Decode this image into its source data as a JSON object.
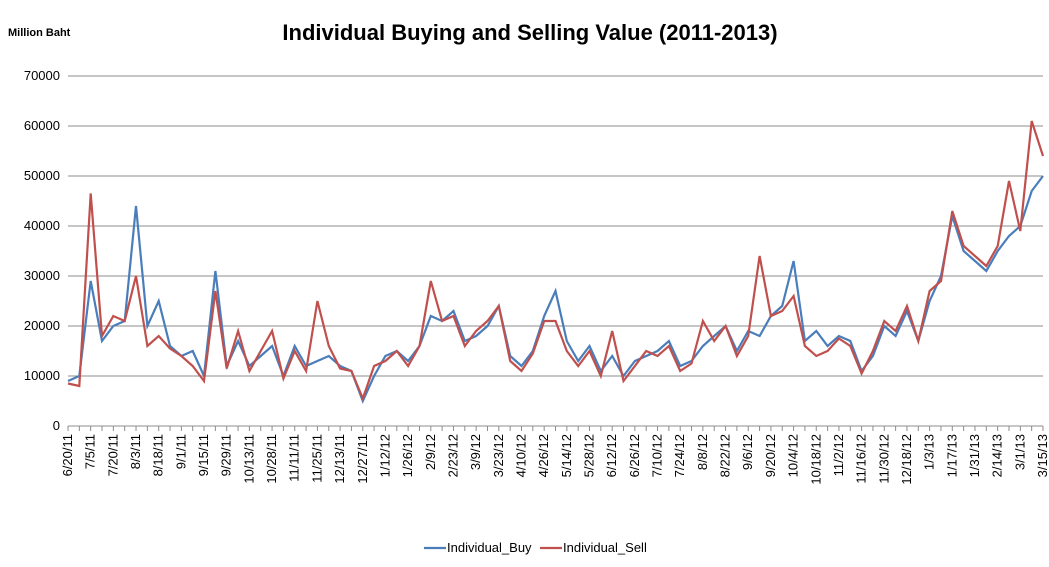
{
  "chart_data": {
    "type": "line",
    "title": "Individual Buying and Selling Value (2011-2013)",
    "y_label": "Million Baht",
    "categories": [
      "6/20/11",
      null,
      "7/5/11",
      null,
      "7/20/11",
      null,
      "8/3/11",
      null,
      "8/18/11",
      null,
      "9/1/11",
      null,
      "9/15/11",
      null,
      "9/29/11",
      null,
      "10/13/11",
      null,
      "10/28/11",
      null,
      "11/11/11",
      null,
      "11/25/11",
      null,
      "12/13/11",
      null,
      "12/27/11",
      null,
      "1/12/12",
      null,
      "1/26/12",
      null,
      "2/9/12",
      null,
      "2/23/12",
      null,
      "3/9/12",
      null,
      "3/23/12",
      null,
      "4/10/12",
      null,
      "4/26/12",
      null,
      "5/14/12",
      null,
      "5/28/12",
      null,
      "6/12/12",
      null,
      "6/26/12",
      null,
      "7/10/12",
      null,
      "7/24/12",
      null,
      "8/8/12",
      null,
      "8/22/12",
      null,
      "9/6/12",
      null,
      "9/20/12",
      null,
      "10/4/12",
      null,
      "10/18/12",
      null,
      "11/2/12",
      null,
      "11/16/12",
      null,
      "11/30/12",
      null,
      "12/18/12",
      null,
      "1/3/13",
      null,
      "1/17/13",
      null,
      "1/31/13",
      null,
      "2/14/13",
      null,
      "3/1/13",
      null,
      "3/15/13"
    ],
    "series": [
      {
        "name": "Individual_Buy",
        "color": "#4a7ebb",
        "values": [
          9000,
          10000,
          29000,
          17000,
          20000,
          21000,
          44000,
          20000,
          25000,
          16000,
          14000,
          15000,
          10000,
          31000,
          12000,
          17000,
          12000,
          14000,
          16000,
          10000,
          16000,
          12000,
          13000,
          14000,
          12000,
          11000,
          5000,
          10000,
          14000,
          15000,
          13000,
          16000,
          22000,
          21000,
          23000,
          17000,
          18000,
          20000,
          24000,
          14000,
          12000,
          15000,
          22000,
          27000,
          17000,
          13000,
          16000,
          11000,
          14000,
          10000,
          13000,
          14000,
          15000,
          17000,
          12000,
          13000,
          16000,
          18000,
          20000,
          15000,
          19000,
          18000,
          22000,
          24000,
          33000,
          17000,
          19000,
          16000,
          18000,
          17000,
          11000,
          14000,
          20000,
          18000,
          23000,
          17000,
          25000,
          30000,
          42000,
          35000,
          33000,
          31000,
          35000,
          38000,
          40000,
          47000,
          50000
        ]
      },
      {
        "name": "Individual_Sell",
        "color": "#c0504d",
        "values": [
          8500,
          8000,
          46500,
          18000,
          22000,
          21000,
          30000,
          16000,
          18000,
          15500,
          14000,
          12000,
          9000,
          27000,
          11500,
          19000,
          11000,
          15000,
          19000,
          9500,
          15000,
          11000,
          25000,
          16000,
          11500,
          11000,
          5500,
          12000,
          13000,
          15000,
          12000,
          16000,
          29000,
          21000,
          22000,
          16000,
          19000,
          21000,
          24000,
          13000,
          11000,
          14500,
          21000,
          21000,
          15000,
          12000,
          15000,
          10000,
          19000,
          9000,
          12000,
          15000,
          14000,
          16000,
          11000,
          12500,
          21000,
          17000,
          20000,
          14000,
          18000,
          34000,
          22000,
          23000,
          26000,
          16000,
          14000,
          15000,
          17500,
          16000,
          10500,
          15000,
          21000,
          19000,
          24000,
          17000,
          27000,
          29000,
          43000,
          36000,
          34000,
          32000,
          36000,
          49000,
          39000,
          61000,
          54000
        ]
      }
    ],
    "ylim": [
      0,
      70000
    ],
    "yticks": [
      0,
      10000,
      20000,
      30000,
      40000,
      50000,
      60000,
      70000
    ],
    "grid": true,
    "legend": "bottom"
  }
}
